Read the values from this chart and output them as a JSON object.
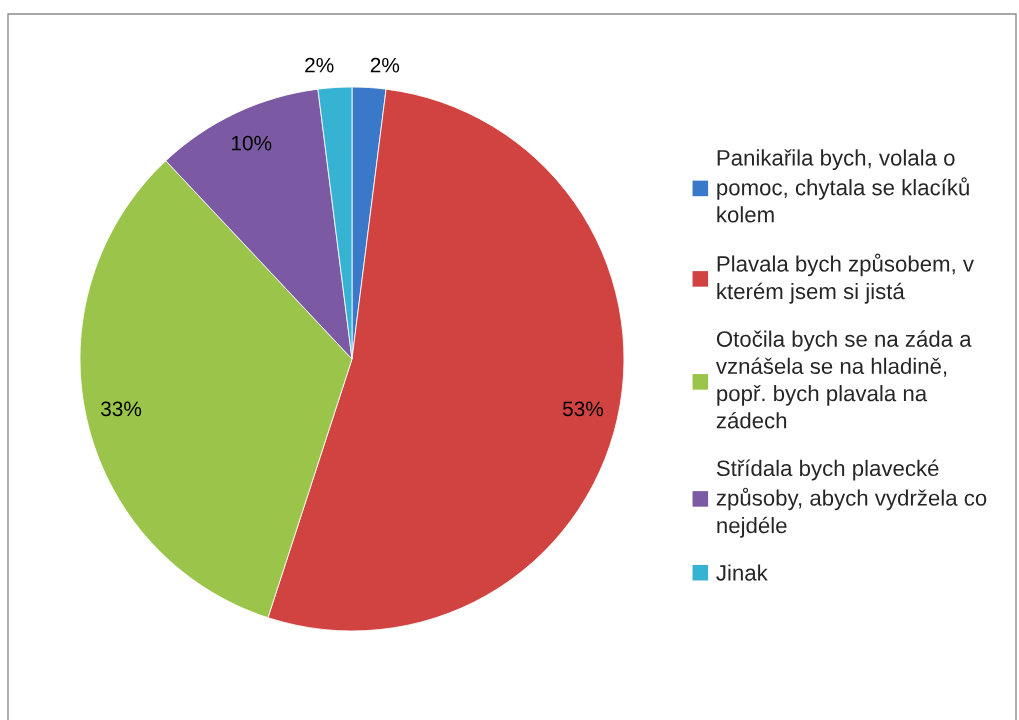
{
  "chart_data": {
    "type": "pie",
    "categories": [
      "Panikařila bych, volala o pomoc, chytala se klacíků kolem",
      "Plavala bych způsobem, v kterém jsem si jistá",
      "Otočila bych se na záda a vznášela se na hladině, popř. bych plavala na zádech",
      "Střídala bych plavecké způsoby, abych vydržela co nejdéle",
      "Jinak"
    ],
    "values": [
      2,
      53,
      33,
      10,
      2
    ],
    "colors": [
      "#3a78c9",
      "#d04340",
      "#9bc44a",
      "#7b5aa3",
      "#36b3d3"
    ],
    "value_labels": [
      "2%",
      "53%",
      "33%",
      "10%",
      "2%"
    ],
    "legend": "right"
  }
}
